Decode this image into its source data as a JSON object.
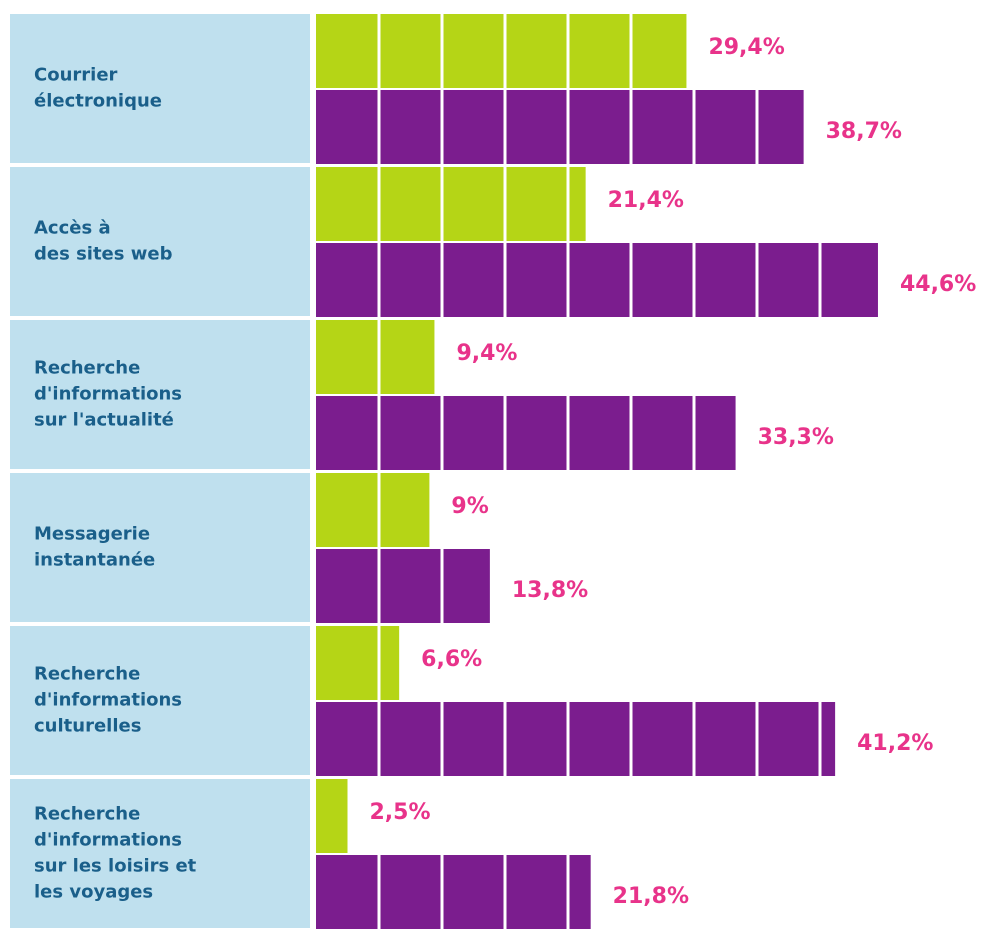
{
  "chart_data": {
    "type": "bar",
    "orientation": "horizontal",
    "categories": [
      [
        "Courrier",
        "électronique"
      ],
      [
        "Accès à",
        "des sites web"
      ],
      [
        "Recherche",
        "d'informations",
        "sur l'actualité"
      ],
      [
        "Messagerie",
        "instantanée"
      ],
      [
        "Recherche",
        "d'informations",
        "culturelles"
      ],
      [
        "Recherche",
        "d'informations",
        "sur les loisirs et",
        "les voyages"
      ]
    ],
    "series": [
      {
        "color": "#b5d516",
        "values": [
          29.4,
          21.4,
          9.4,
          9,
          6.6,
          2.5
        ],
        "value_labels": [
          "29,4%",
          "21,4%",
          "9,4%",
          "9%",
          "6,6%",
          "2,5%"
        ]
      },
      {
        "color": "#7b1d8e",
        "values": [
          38.7,
          44.6,
          33.3,
          13.8,
          41.2,
          21.8
        ],
        "value_labels": [
          "38,7%",
          "44,6%",
          "33,3%",
          "13,8%",
          "41,2%",
          "21,8%"
        ]
      }
    ]
  }
}
